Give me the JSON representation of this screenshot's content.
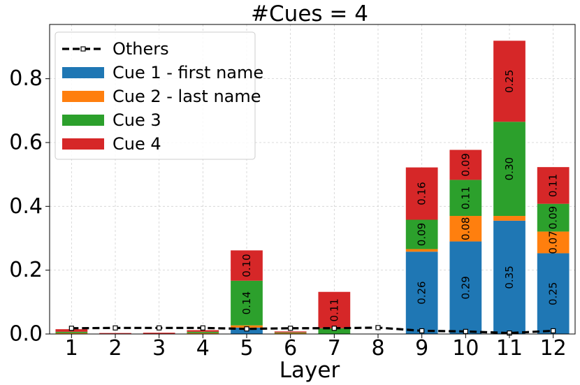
{
  "chart_data": {
    "type": "bar",
    "stacked": true,
    "title": "#Cues = 4",
    "xlabel": "Layer",
    "ylabel": "",
    "categories": [
      "1",
      "2",
      "3",
      "4",
      "5",
      "6",
      "7",
      "8",
      "9",
      "10",
      "11",
      "12"
    ],
    "ylim": [
      0,
      0.97
    ],
    "yticks": [
      0.0,
      0.2,
      0.4,
      0.6,
      0.8
    ],
    "ytick_labels": [
      "0.0",
      "0.2",
      "0.4",
      "0.6",
      "0.8"
    ],
    "grid": true,
    "legend_position": "top-left",
    "series": [
      {
        "name": "Cue 1 - first name",
        "color": "#1f77b4",
        "values": [
          0.0,
          0.0,
          0.0,
          0.0,
          0.02,
          0.0,
          0.0,
          0.0,
          0.258,
          0.29,
          0.355,
          0.253
        ],
        "labels": [
          "",
          "",
          "",
          "",
          "",
          "",
          "",
          "",
          "0.26",
          "0.29",
          "0.35",
          "0.25"
        ]
      },
      {
        "name": "Cue 2 - last name",
        "color": "#ff7f0e",
        "values": [
          0.003,
          0.001,
          0.001,
          0.003,
          0.007,
          0.003,
          0.0,
          0.0,
          0.008,
          0.08,
          0.015,
          0.068
        ],
        "labels": [
          "",
          "",
          "",
          "",
          "",
          "",
          "",
          "",
          "",
          "0.08",
          "",
          "0.07"
        ]
      },
      {
        "name": "Cue 3",
        "color": "#2ca02c",
        "values": [
          0.004,
          0.0,
          0.0,
          0.004,
          0.14,
          0.002,
          0.018,
          0.0,
          0.092,
          0.113,
          0.295,
          0.087
        ],
        "labels": [
          "",
          "",
          "",
          "",
          "0.14",
          "",
          "",
          "",
          "0.09",
          "0.11",
          "0.30",
          "0.09"
        ]
      },
      {
        "name": "Cue 4",
        "color": "#d62728",
        "values": [
          0.008,
          0.002,
          0.003,
          0.005,
          0.095,
          0.003,
          0.114,
          0.0,
          0.164,
          0.094,
          0.254,
          0.115
        ],
        "labels": [
          "",
          "",
          "",
          "",
          "0.10",
          "",
          "0.11",
          "",
          "0.16",
          "0.09",
          "0.25",
          "0.11"
        ]
      }
    ],
    "line_series": {
      "name": "Others",
      "color": "#000000",
      "values": [
        0.018,
        0.019,
        0.019,
        0.019,
        0.016,
        0.018,
        0.018,
        0.02,
        0.01,
        0.008,
        0.003,
        0.01
      ]
    }
  }
}
